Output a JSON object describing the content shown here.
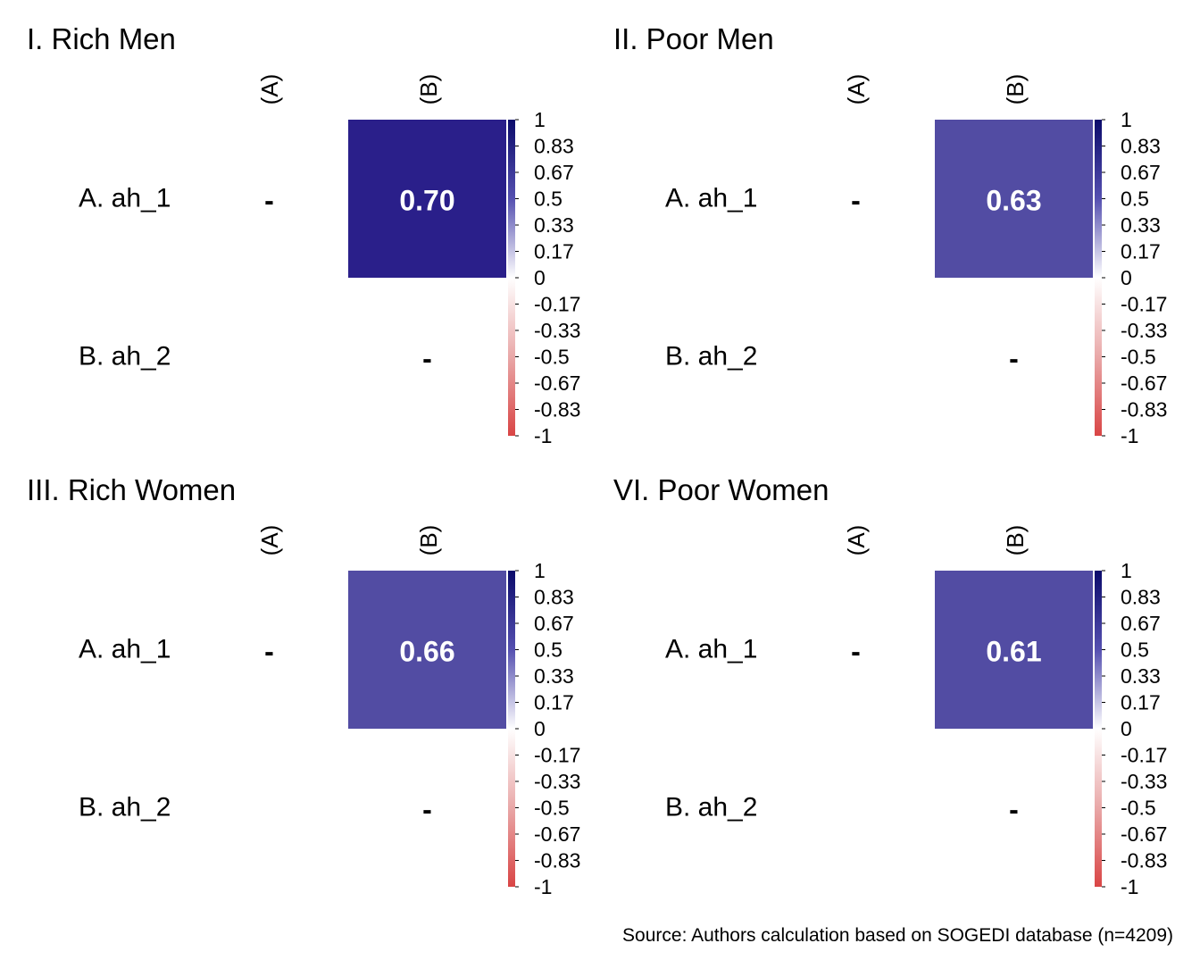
{
  "chart_data": [
    {
      "type": "heatmap",
      "title": "I. Rich Men",
      "rows": [
        "A. ah_1",
        "B. ah_2"
      ],
      "columns": [
        "(A)",
        "(B)"
      ],
      "values": [
        [
          null,
          0.7
        ],
        [
          null,
          null
        ]
      ],
      "cell_labels": [
        [
          "-",
          "0.70"
        ],
        [
          "",
          "-"
        ]
      ],
      "colorbar_ticks": [
        "1",
        "0.83",
        "0.67",
        "0.5",
        "0.33",
        "0.17",
        "0",
        "-0.17",
        "-0.33",
        "-0.5",
        "-0.67",
        "-0.83",
        "-1"
      ],
      "color_range": [
        -1,
        1
      ]
    },
    {
      "type": "heatmap",
      "title": "II. Poor Men",
      "rows": [
        "A. ah_1",
        "B. ah_2"
      ],
      "columns": [
        "(A)",
        "(B)"
      ],
      "values": [
        [
          null,
          0.63
        ],
        [
          null,
          null
        ]
      ],
      "cell_labels": [
        [
          "-",
          "0.63"
        ],
        [
          "",
          "-"
        ]
      ],
      "colorbar_ticks": [
        "1",
        "0.83",
        "0.67",
        "0.5",
        "0.33",
        "0.17",
        "0",
        "-0.17",
        "-0.33",
        "-0.5",
        "-0.67",
        "-0.83",
        "-1"
      ],
      "color_range": [
        -1,
        1
      ]
    },
    {
      "type": "heatmap",
      "title": "III. Rich Women",
      "rows": [
        "A. ah_1",
        "B. ah_2"
      ],
      "columns": [
        "(A)",
        "(B)"
      ],
      "values": [
        [
          null,
          0.66
        ],
        [
          null,
          null
        ]
      ],
      "cell_labels": [
        [
          "-",
          "0.66"
        ],
        [
          "",
          "-"
        ]
      ],
      "colorbar_ticks": [
        "1",
        "0.83",
        "0.67",
        "0.5",
        "0.33",
        "0.17",
        "0",
        "-0.17",
        "-0.33",
        "-0.5",
        "-0.67",
        "-0.83",
        "-1"
      ],
      "color_range": [
        -1,
        1
      ]
    },
    {
      "type": "heatmap",
      "title": "VI. Poor Women",
      "rows": [
        "A. ah_1",
        "B. ah_2"
      ],
      "columns": [
        "(A)",
        "(B)"
      ],
      "values": [
        [
          null,
          0.61
        ],
        [
          null,
          null
        ]
      ],
      "cell_labels": [
        [
          "-",
          "0.61"
        ],
        [
          "",
          "-"
        ]
      ],
      "colorbar_ticks": [
        "1",
        "0.83",
        "0.67",
        "0.5",
        "0.33",
        "0.17",
        "0",
        "-0.17",
        "-0.33",
        "-0.5",
        "-0.67",
        "-0.83",
        "-1"
      ],
      "color_range": [
        -1,
        1
      ]
    }
  ],
  "colors": {
    "high": "#0b0b6b",
    "mid": "#ffffff",
    "low": "#d94545",
    "cells": [
      "#2a1f8a",
      "#524ca3",
      "#524ca3",
      "#524ca3"
    ]
  },
  "source": "Source: Authors calculation based on SOGEDI database (n=4209)"
}
